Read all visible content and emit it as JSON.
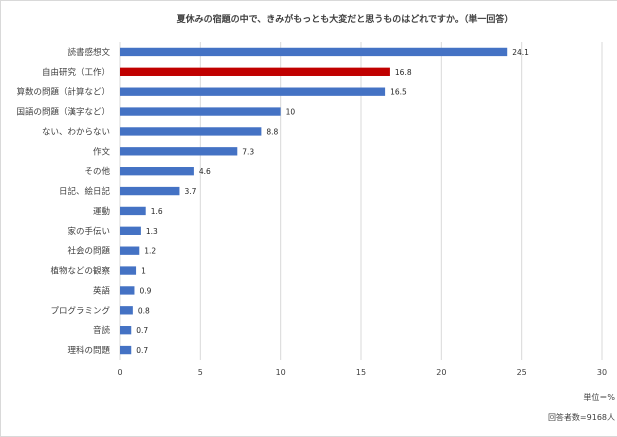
{
  "chart_data": {
    "type": "bar",
    "orientation": "horizontal",
    "title": "夏休みの宿題の中で、きみがもっとも大変だと思うものはどれですか。（単一回答）",
    "categories": [
      "読書感想文",
      "自由研究（工作）",
      "算数の問題（計算など）",
      "国語の問題（漢字など）",
      "ない、わからない",
      "作文",
      "その他",
      "日記、絵日記",
      "運動",
      "家の手伝い",
      "社会の問題",
      "植物などの観察",
      "英語",
      "プログラミング",
      "音読",
      "理科の問題"
    ],
    "values": [
      24.1,
      16.8,
      16.5,
      10,
      8.8,
      7.3,
      4.6,
      3.7,
      1.6,
      1.3,
      1.2,
      1,
      0.9,
      0.8,
      0.7,
      0.7
    ],
    "value_labels": [
      "24.1",
      "16.8",
      "16.5",
      "10",
      "8.8",
      "7.3",
      "4.6",
      "3.7",
      "1.6",
      "1.3",
      "1.2",
      "1",
      "0.9",
      "0.8",
      "0.7",
      "0.7"
    ],
    "highlight_index": 1,
    "xlim": [
      0,
      30
    ],
    "xticks": [
      "0",
      "5",
      "10",
      "15",
      "20",
      "25",
      "30"
    ],
    "grid": "vertical",
    "colors": {
      "bar": "#4472c4",
      "highlight": "#c00000",
      "grid": "#d9d9d9"
    }
  },
  "footer": {
    "unit": "単位＝%",
    "respondents": "回答者数=9168人"
  }
}
